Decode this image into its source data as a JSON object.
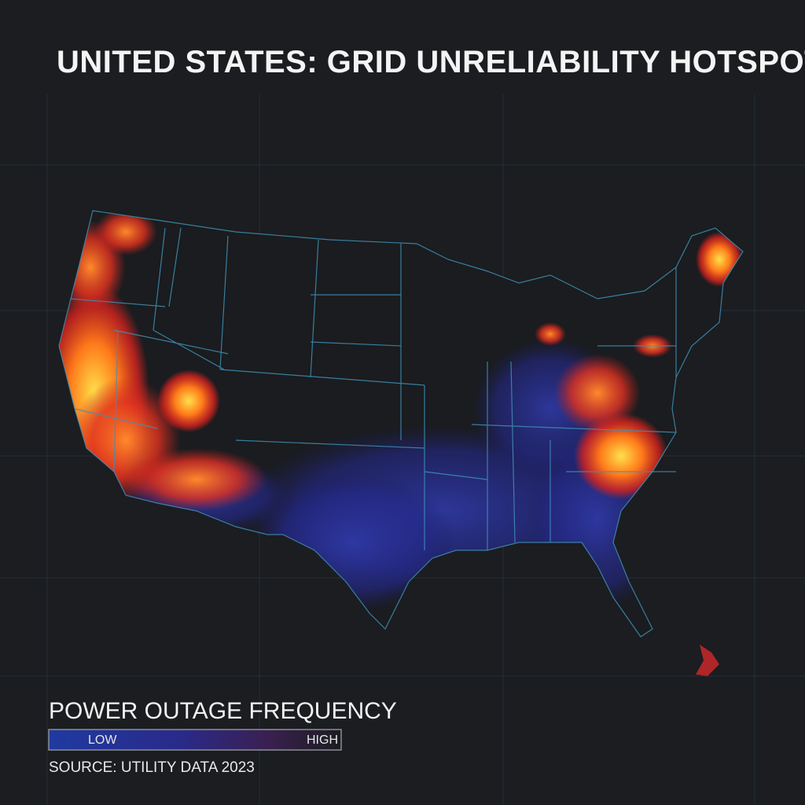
{
  "header": {
    "title": "UNITED STATES: GRID UNRELIABILITY HOTSPOTS"
  },
  "legend": {
    "title": "POWER OUTAGE FREQUENCY",
    "low": "LOW",
    "high": "HIGH"
  },
  "source": "SOURCE: UTILITY DATA 2023"
}
